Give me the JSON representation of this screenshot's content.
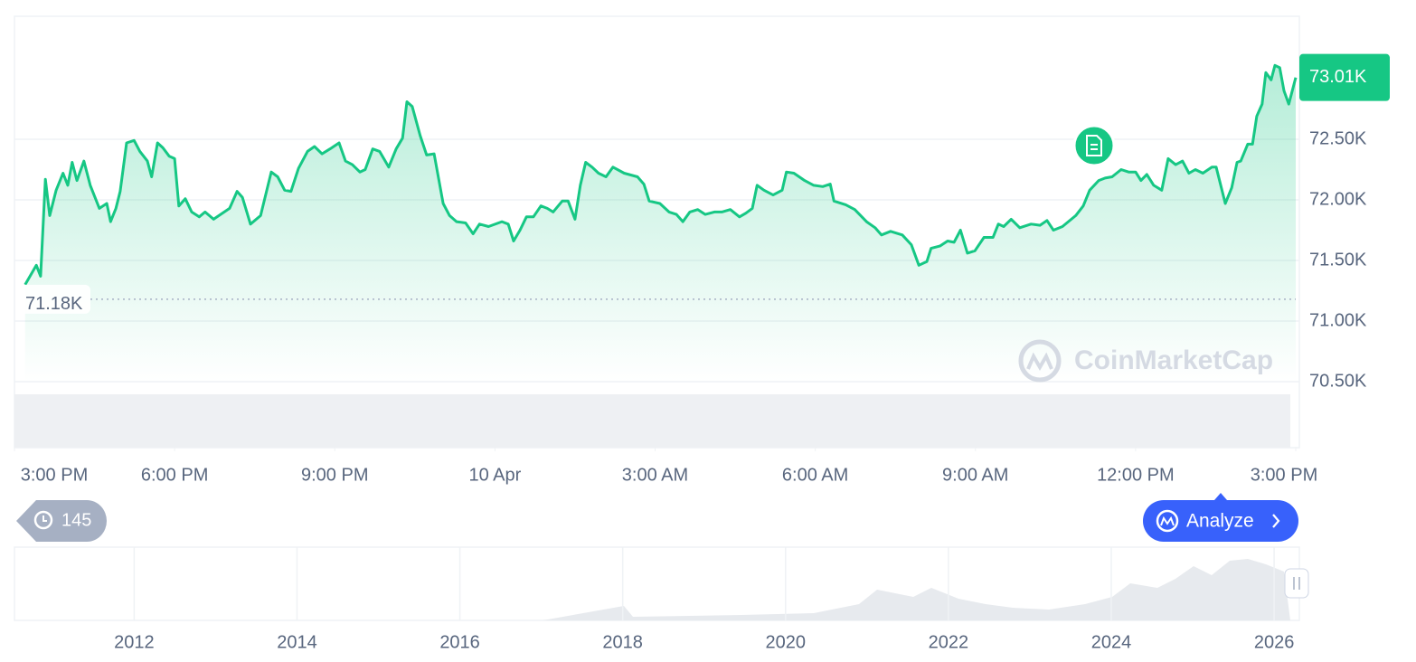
{
  "chart_data": {
    "type": "line",
    "x": [
      0.2,
      0.41,
      0.49,
      0.58,
      0.66,
      0.78,
      0.91,
      1.0,
      1.08,
      1.17,
      1.3,
      1.42,
      1.59,
      1.73,
      1.8,
      1.9,
      1.98,
      2.1,
      2.24,
      2.35,
      2.49,
      2.57,
      2.68,
      2.78,
      2.9,
      3.0,
      3.08,
      3.2,
      3.32,
      3.46,
      3.57,
      3.73,
      3.83,
      4.03,
      4.17,
      4.27,
      4.42,
      4.61,
      4.81,
      4.93,
      5.06,
      5.18,
      5.32,
      5.49,
      5.62,
      5.76,
      5.91,
      6.08,
      6.2,
      6.33,
      6.47,
      6.57,
      6.71,
      6.84,
      7.01,
      7.15,
      7.27,
      7.35,
      7.45,
      7.6,
      7.72,
      7.86,
      8.03,
      8.15,
      8.28,
      8.45,
      8.59,
      8.71,
      8.88,
      9.13,
      9.25,
      9.35,
      9.47,
      9.59,
      9.72,
      9.86,
      9.98,
      10.09,
      10.26,
      10.37,
      10.5,
      10.6,
      10.7,
      10.82,
      10.94,
      11.08,
      11.21,
      11.42,
      11.67,
      11.79,
      11.89,
      12.09,
      12.26,
      12.4,
      12.52,
      12.65,
      12.8,
      12.94,
      13.11,
      13.25,
      13.41,
      13.58,
      13.7,
      13.82,
      13.91,
      14.04,
      14.21,
      14.38,
      14.46,
      14.6,
      14.8,
      14.97,
      15.14,
      15.28,
      15.35,
      15.57,
      15.74,
      15.96,
      16.12,
      16.24,
      16.41,
      16.63,
      16.8,
      16.94,
      17.09,
      17.17,
      17.34,
      17.48,
      17.6,
      17.72,
      17.85,
      17.99,
      18.16,
      18.33,
      18.43,
      18.53,
      18.67,
      18.83,
      19.04,
      19.21,
      19.34,
      19.46,
      19.63,
      19.88,
      20.02,
      20.14,
      20.31,
      20.43,
      20.56,
      20.73,
      20.87,
      21.0,
      21.1,
      21.21,
      21.34,
      21.49,
      21.61,
      21.75,
      21.88,
      22.0,
      22.12,
      22.26,
      22.43,
      22.51,
      22.68,
      22.8,
      22.9,
      22.97,
      23.1,
      23.19,
      23.27,
      23.37,
      23.44,
      23.54,
      23.61,
      23.7,
      23.78,
      23.87,
      24.0
    ],
    "series": [
      {
        "color": "#16c784",
        "values": [
          71300,
          71460,
          71370,
          72170,
          71870,
          72080,
          72220,
          72120,
          72310,
          72160,
          72320,
          72120,
          71930,
          71970,
          71820,
          71930,
          72070,
          72470,
          72490,
          72400,
          72320,
          72190,
          72470,
          72430,
          72360,
          72340,
          71950,
          72010,
          71900,
          71860,
          71900,
          71840,
          71870,
          71930,
          72070,
          72020,
          71800,
          71870,
          72230,
          72190,
          72080,
          72070,
          72260,
          72400,
          72440,
          72380,
          72420,
          72470,
          72320,
          72290,
          72230,
          72250,
          72420,
          72400,
          72270,
          72420,
          72510,
          72810,
          72770,
          72530,
          72370,
          72380,
          71970,
          71870,
          71820,
          71810,
          71720,
          71800,
          71780,
          71820,
          71800,
          71660,
          71750,
          71860,
          71860,
          71950,
          71930,
          71900,
          71990,
          71990,
          71840,
          72120,
          72310,
          72270,
          72220,
          72190,
          72270,
          72220,
          72190,
          72130,
          71990,
          71970,
          71900,
          71880,
          71820,
          71900,
          71920,
          71880,
          71900,
          71900,
          71920,
          71860,
          71890,
          71930,
          72120,
          72080,
          72040,
          72080,
          72230,
          72220,
          72160,
          72120,
          72110,
          72130,
          71990,
          71960,
          71920,
          71820,
          71770,
          71710,
          71740,
          71710,
          71630,
          71460,
          71490,
          71600,
          71620,
          71660,
          71650,
          71750,
          71560,
          71580,
          71690,
          71690,
          71800,
          71780,
          71840,
          71770,
          71800,
          71790,
          71830,
          71750,
          71780,
          71870,
          71950,
          72080,
          72160,
          72180,
          72190,
          72250,
          72230,
          72230,
          72160,
          72210,
          72120,
          72080,
          72340,
          72290,
          72320,
          72220,
          72250,
          72220,
          72270,
          72270,
          71970,
          72100,
          72310,
          72320,
          72460,
          72460,
          72690,
          72790,
          73050,
          72990,
          73110,
          73090,
          72900,
          72790,
          73010
        ]
      }
    ],
    "xlim": [
      0,
      24
    ],
    "xticks": [
      {
        "value": 0,
        "label": "3:00 PM"
      },
      {
        "value": 3,
        "label": "6:00 PM"
      },
      {
        "value": 6,
        "label": "9:00 PM"
      },
      {
        "value": 9,
        "label": "10 Apr"
      },
      {
        "value": 12,
        "label": "3:00 AM"
      },
      {
        "value": 15,
        "label": "6:00 AM"
      },
      {
        "value": 18,
        "label": "9:00 AM"
      },
      {
        "value": 21,
        "label": "12:00 PM"
      },
      {
        "value": 24,
        "label": "3:00 PM"
      }
    ],
    "ylim": [
      69955,
      73515
    ],
    "yticks": [
      {
        "value": 70500,
        "label": "70.50K"
      },
      {
        "value": 71000,
        "label": "71.00K"
      },
      {
        "value": 71500,
        "label": "71.50K"
      },
      {
        "value": 72000,
        "label": "72.00K"
      },
      {
        "value": 72500,
        "label": "72.50K"
      }
    ],
    "grid": true,
    "reference_line": {
      "value": 71180,
      "label": "71.18K"
    },
    "last_price": {
      "value": 73010,
      "label": "73.01K"
    },
    "watermark": "CoinMarketCap",
    "navigator": {
      "xlim": [
        2010.53,
        2026.31
      ],
      "xticks": [
        2012,
        2014,
        2016,
        2018,
        2020,
        2022,
        2024,
        2026
      ]
    }
  },
  "controls": {
    "history_count": 145,
    "analyze_button": "Analyze"
  }
}
